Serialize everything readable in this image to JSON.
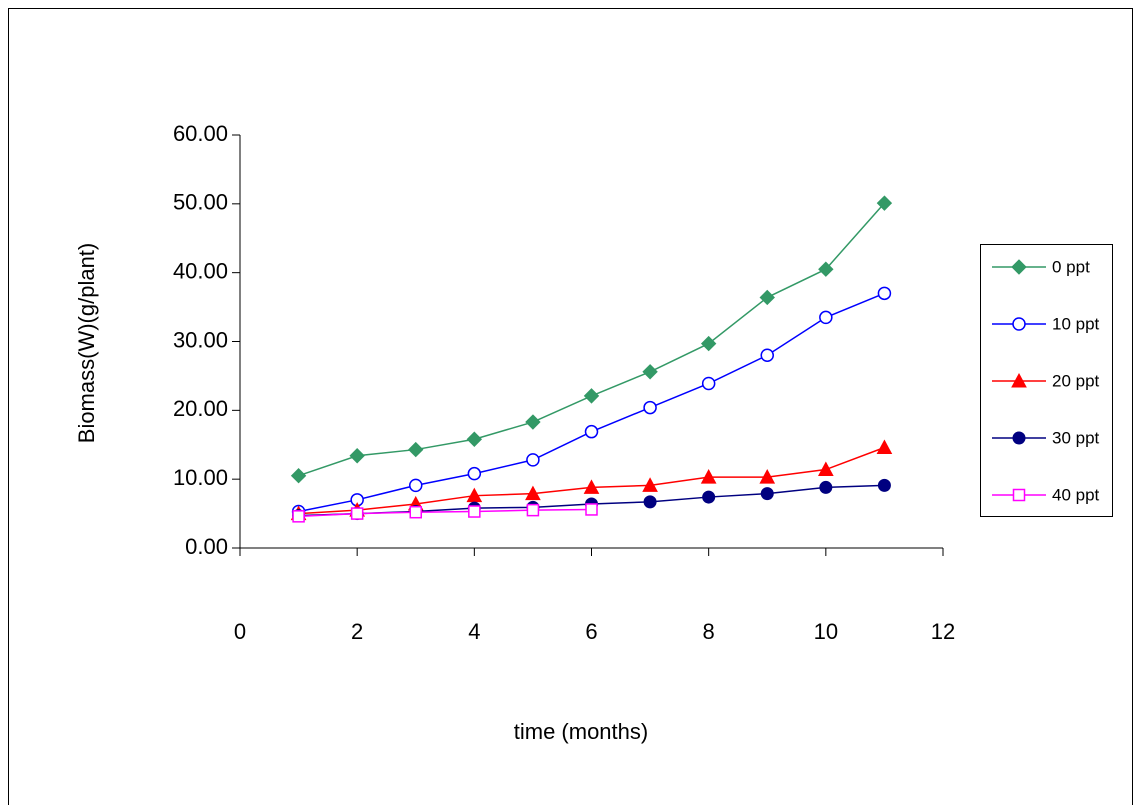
{
  "chart_data": {
    "type": "line",
    "x_label": "time (months)",
    "y_label": "Biomass(W)(g/plant)",
    "x": [
      1,
      2,
      3,
      4,
      5,
      6,
      7,
      8,
      9,
      10,
      11
    ],
    "series": [
      {
        "name": "0 ppt",
        "color": "#339966",
        "marker": "diamond",
        "values": [
          10.5,
          13.4,
          14.3,
          15.8,
          18.3,
          22.1,
          25.6,
          29.7,
          36.4,
          40.5,
          50.1
        ]
      },
      {
        "name": "10 ppt",
        "color": "#0000ff",
        "marker": "open-circle",
        "values": [
          5.3,
          7.0,
          9.1,
          10.8,
          12.8,
          16.9,
          20.4,
          23.9,
          28.0,
          33.5,
          37.0
        ]
      },
      {
        "name": "20 ppt",
        "color": "#ff0000",
        "marker": "triangle",
        "values": [
          5.0,
          5.5,
          6.4,
          7.6,
          7.9,
          8.8,
          9.1,
          10.3,
          10.3,
          11.4,
          14.6
        ]
      },
      {
        "name": "30 ppt",
        "color": "#000080",
        "marker": "circle",
        "values": [
          4.7,
          5.0,
          5.3,
          5.8,
          5.9,
          6.4,
          6.7,
          7.4,
          7.9,
          8.8,
          9.1
        ]
      },
      {
        "name": "40 ppt",
        "color": "#ff00ff",
        "marker": "open-square",
        "values": [
          4.6,
          5.0,
          5.2,
          5.3,
          5.5,
          5.6,
          null,
          null,
          null,
          null,
          null
        ]
      }
    ],
    "xlim": [
      0,
      12
    ],
    "xticks": [
      0,
      2,
      4,
      6,
      8,
      10,
      12
    ],
    "ylim": [
      0,
      60
    ],
    "yticks": [
      {
        "value": 0,
        "label": "0.00"
      },
      {
        "value": 10,
        "label": "10.00"
      },
      {
        "value": 20,
        "label": "20.00"
      },
      {
        "value": 30,
        "label": "30.00"
      },
      {
        "value": 40,
        "label": "40.00"
      },
      {
        "value": 50,
        "label": "50.00"
      },
      {
        "value": 60,
        "label": "60.00"
      }
    ],
    "legend": "right"
  }
}
